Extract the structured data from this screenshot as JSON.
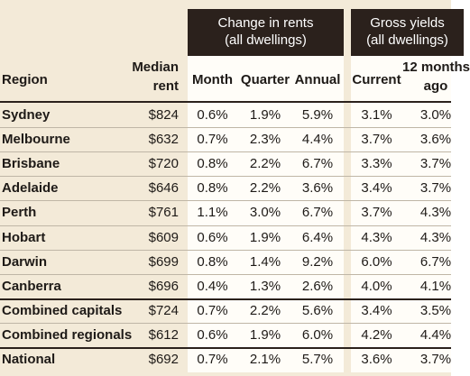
{
  "header_groups": [
    {
      "lines": [
        "Change in rents",
        "(all dwellings)"
      ]
    },
    {
      "lines": [
        "Gross yields",
        "(all dwellings)"
      ]
    }
  ],
  "columns": [
    {
      "lines": [
        "Region"
      ]
    },
    {
      "lines": [
        "Median",
        "rent"
      ]
    },
    {
      "lines": [
        "Month"
      ]
    },
    {
      "lines": [
        "Quarter"
      ]
    },
    {
      "lines": [
        "Annual"
      ]
    },
    {
      "lines": [
        "Current"
      ]
    },
    {
      "lines": [
        "12 months",
        "ago"
      ]
    }
  ],
  "rows": [
    [
      "Sydney",
      "$824",
      "0.6%",
      "1.9%",
      "5.9%",
      "3.1%",
      "3.0%"
    ],
    [
      "Melbourne",
      "$632",
      "0.7%",
      "2.3%",
      "4.4%",
      "3.7%",
      "3.6%"
    ],
    [
      "Brisbane",
      "$720",
      "0.8%",
      "2.2%",
      "6.7%",
      "3.3%",
      "3.7%"
    ],
    [
      "Adelaide",
      "$646",
      "0.8%",
      "2.2%",
      "3.6%",
      "3.4%",
      "3.7%"
    ],
    [
      "Perth",
      "$761",
      "1.1%",
      "3.0%",
      "6.7%",
      "3.7%",
      "4.3%"
    ],
    [
      "Hobart",
      "$609",
      "0.6%",
      "1.9%",
      "6.4%",
      "4.3%",
      "4.3%"
    ],
    [
      "Darwin",
      "$699",
      "0.8%",
      "1.4%",
      "9.2%",
      "6.0%",
      "6.7%"
    ],
    [
      "Canberra",
      "$696",
      "0.4%",
      "1.3%",
      "2.6%",
      "4.0%",
      "4.1%"
    ],
    [
      "Combined capitals",
      "$724",
      "0.7%",
      "2.2%",
      "5.6%",
      "3.4%",
      "3.5%"
    ],
    [
      "Combined regionals",
      "$612",
      "0.6%",
      "1.9%",
      "6.0%",
      "4.2%",
      "4.4%"
    ],
    [
      "National",
      "$692",
      "0.7%",
      "2.1%",
      "5.7%",
      "3.6%",
      "3.7%"
    ]
  ]
}
